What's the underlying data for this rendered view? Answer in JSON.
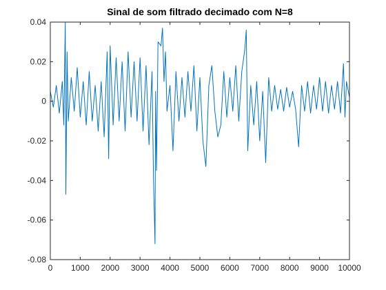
{
  "colors": {
    "background": "#ffffff",
    "axes_box": "#262626",
    "series_line": "#0072bd"
  },
  "chart_data": {
    "type": "line",
    "title": "Sinal de som filtrado decimado com N=8",
    "xlabel": "",
    "ylabel": "",
    "xlim": [
      0,
      10000
    ],
    "ylim": [
      -0.08,
      0.04
    ],
    "grid": false,
    "x_ticks": [
      0,
      1000,
      2000,
      3000,
      4000,
      5000,
      6000,
      7000,
      8000,
      9000,
      10000
    ],
    "x_tick_labels": [
      "0",
      "1000",
      "2000",
      "3000",
      "4000",
      "5000",
      "6000",
      "7000",
      "8000",
      "9000",
      "10000"
    ],
    "y_ticks": [
      -0.08,
      -0.06,
      -0.04,
      -0.02,
      0,
      0.02,
      0.04
    ],
    "y_tick_labels": [
      "-0.08",
      "-0.06",
      "-0.04",
      "-0.02",
      "0",
      "0.02",
      "0.04"
    ],
    "series": [
      {
        "color": "#0072bd",
        "x": [
          0,
          100,
          200,
          300,
          400,
          450,
          500,
          520,
          560,
          600,
          700,
          800,
          900,
          1000,
          1100,
          1200,
          1300,
          1400,
          1500,
          1600,
          1700,
          1800,
          1900,
          1950,
          2000,
          2100,
          2200,
          2300,
          2400,
          2500,
          2600,
          2700,
          2800,
          2900,
          3000,
          3100,
          3200,
          3300,
          3400,
          3450,
          3500,
          3520,
          3550,
          3600,
          3700,
          3750,
          3800,
          3850,
          3900,
          4000,
          4100,
          4200,
          4300,
          4400,
          4500,
          4600,
          4700,
          4800,
          4900,
          5000,
          5100,
          5200,
          5300,
          5400,
          5500,
          5600,
          5700,
          5800,
          5900,
          6000,
          6100,
          6200,
          6300,
          6400,
          6500,
          6550,
          6600,
          6700,
          6800,
          6900,
          7000,
          7100,
          7200,
          7300,
          7400,
          7500,
          7600,
          7700,
          7800,
          7900,
          8000,
          8100,
          8200,
          8300,
          8400,
          8500,
          8600,
          8700,
          8800,
          8900,
          9000,
          9100,
          9200,
          9300,
          9400,
          9500,
          9600,
          9700,
          9800,
          9850,
          9900,
          10000
        ],
        "y": [
          0.005,
          -0.003,
          0.008,
          -0.006,
          0.01,
          -0.012,
          0.04,
          -0.047,
          0.025,
          -0.01,
          0.012,
          -0.005,
          0.017,
          -0.008,
          0.01,
          -0.012,
          0.015,
          -0.01,
          0.008,
          -0.015,
          0.01,
          -0.018,
          0.025,
          -0.029,
          0.028,
          -0.012,
          0.022,
          -0.01,
          0.02,
          -0.015,
          0.025,
          -0.008,
          0.02,
          -0.01,
          0.022,
          -0.015,
          0.018,
          -0.022,
          0.015,
          -0.04,
          -0.072,
          0.005,
          -0.035,
          0.03,
          0.028,
          0.037,
          0.01,
          0.025,
          -0.005,
          0.008,
          -0.025,
          0.015,
          -0.01,
          0.012,
          -0.008,
          0.015,
          -0.005,
          0.018,
          -0.015,
          0.012,
          -0.02,
          -0.033,
          0.008,
          0.018,
          -0.005,
          -0.018,
          -0.012,
          0.015,
          -0.008,
          0.012,
          -0.005,
          0.018,
          -0.01,
          0.015,
          0.026,
          0.036,
          -0.025,
          0.008,
          -0.012,
          0.01,
          -0.02,
          0.005,
          -0.031,
          0.012,
          -0.005,
          0.008,
          -0.004,
          0.006,
          -0.005,
          0.007,
          -0.003,
          0.005,
          -0.004,
          -0.023,
          0.008,
          -0.005,
          0.01,
          -0.006,
          0.008,
          -0.004,
          0.012,
          -0.005,
          0.01,
          -0.006,
          0.008,
          -0.004,
          0.01,
          -0.006,
          0.019,
          -0.008,
          0.01,
          0.002
        ]
      }
    ]
  }
}
